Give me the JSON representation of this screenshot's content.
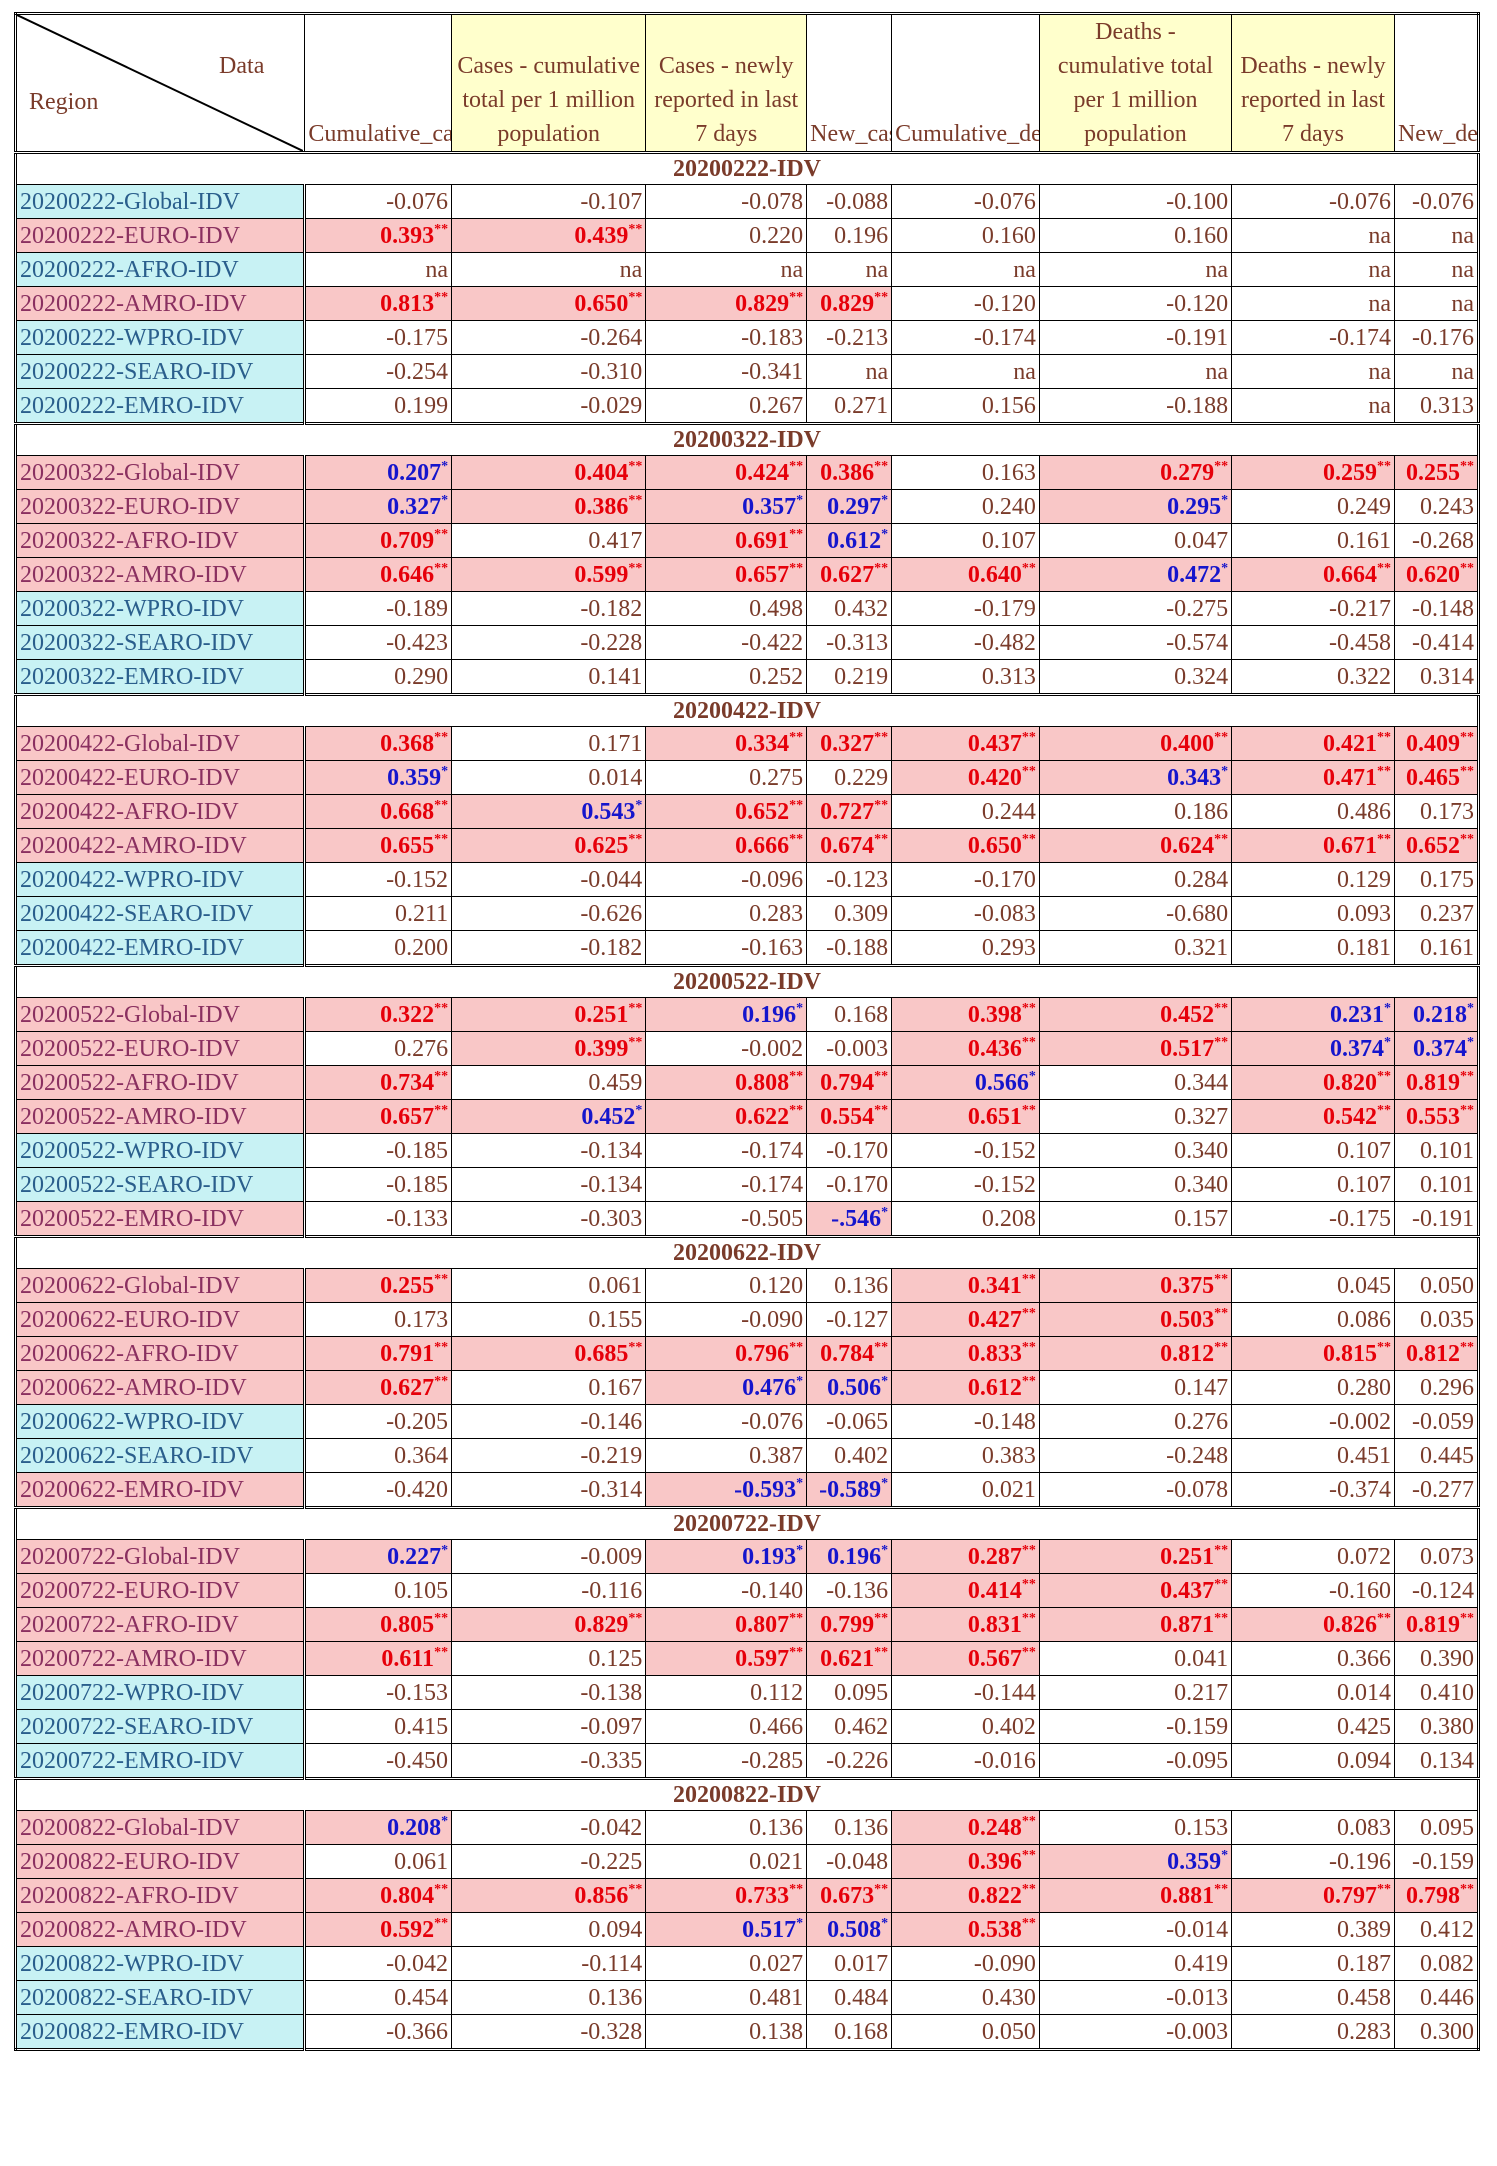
{
  "header": {
    "corner_top": "Data",
    "corner_bottom": "Region",
    "columns": [
      "Cumulative_cases",
      "Cases - cumulative total per 1 million population",
      "Cases - newly reported in last 7 days",
      "New_cases",
      "Cumulative_deaths",
      "Deaths - cumulative total per 1 million population",
      "Deaths - newly reported in last 7 days",
      "New_deaths"
    ]
  },
  "groups": [
    {
      "title": "20200222-IDV",
      "rows": [
        {
          "region": "20200222-Global-IDV",
          "cells": [
            "-0.076",
            "-0.107",
            "-0.078",
            "-0.088",
            "-0.076",
            "-0.100",
            "-0.076",
            "-0.076"
          ]
        },
        {
          "region": "20200222-EURO-IDV",
          "cells": [
            "0.393**",
            "0.439**",
            "0.220",
            "0.196",
            "0.160",
            "0.160",
            "na",
            "na"
          ]
        },
        {
          "region": "20200222-AFRO-IDV",
          "cells": [
            "na",
            "na",
            "na",
            "na",
            "na",
            "na",
            "na",
            "na"
          ]
        },
        {
          "region": "20200222-AMRO-IDV",
          "cells": [
            "0.813**",
            "0.650**",
            "0.829**",
            "0.829**",
            "-0.120",
            "-0.120",
            "na",
            "na"
          ]
        },
        {
          "region": "20200222-WPRO-IDV",
          "cells": [
            "-0.175",
            "-0.264",
            "-0.183",
            "-0.213",
            "-0.174",
            "-0.191",
            "-0.174",
            "-0.176"
          ]
        },
        {
          "region": "20200222-SEARO-IDV",
          "cells": [
            "-0.254",
            "-0.310",
            "-0.341",
            "na",
            "na",
            "na",
            "na",
            "na"
          ]
        },
        {
          "region": "20200222-EMRO-IDV",
          "cells": [
            "0.199",
            "-0.029",
            "0.267",
            "0.271",
            "0.156",
            "-0.188",
            "na",
            "0.313"
          ]
        }
      ]
    },
    {
      "title": "20200322-IDV",
      "rows": [
        {
          "region": "20200322-Global-IDV",
          "cells": [
            "0.207*",
            "0.404**",
            "0.424**",
            "0.386**",
            "0.163",
            "0.279**",
            "0.259**",
            "0.255**"
          ]
        },
        {
          "region": "20200322-EURO-IDV",
          "cells": [
            "0.327*",
            "0.386**",
            "0.357*",
            "0.297*",
            "0.240",
            "0.295*",
            "0.249",
            "0.243"
          ]
        },
        {
          "region": "20200322-AFRO-IDV",
          "cells": [
            "0.709**",
            "0.417",
            "0.691**",
            "0.612*",
            "0.107",
            "0.047",
            "0.161",
            "-0.268"
          ]
        },
        {
          "region": "20200322-AMRO-IDV",
          "cells": [
            "0.646**",
            "0.599**",
            "0.657**",
            "0.627**",
            "0.640**",
            "0.472*",
            "0.664**",
            "0.620**"
          ]
        },
        {
          "region": "20200322-WPRO-IDV",
          "cells": [
            "-0.189",
            "-0.182",
            "0.498",
            "0.432",
            "-0.179",
            "-0.275",
            "-0.217",
            "-0.148"
          ]
        },
        {
          "region": "20200322-SEARO-IDV",
          "cells": [
            "-0.423",
            "-0.228",
            "-0.422",
            "-0.313",
            "-0.482",
            "-0.574",
            "-0.458",
            "-0.414"
          ]
        },
        {
          "region": "20200322-EMRO-IDV",
          "cells": [
            "0.290",
            "0.141",
            "0.252",
            "0.219",
            "0.313",
            "0.324",
            "0.322",
            "0.314"
          ]
        }
      ]
    },
    {
      "title": "20200422-IDV",
      "rows": [
        {
          "region": "20200422-Global-IDV",
          "cells": [
            "0.368**",
            "0.171",
            "0.334**",
            "0.327**",
            "0.437**",
            "0.400**",
            "0.421**",
            "0.409**"
          ]
        },
        {
          "region": "20200422-EURO-IDV",
          "cells": [
            "0.359*",
            "0.014",
            "0.275",
            "0.229",
            "0.420**",
            "0.343*",
            "0.471**",
            "0.465**"
          ]
        },
        {
          "region": "20200422-AFRO-IDV",
          "cells": [
            "0.668**",
            "0.543*",
            "0.652**",
            "0.727**",
            "0.244",
            "0.186",
            "0.486",
            "0.173"
          ]
        },
        {
          "region": "20200422-AMRO-IDV",
          "cells": [
            "0.655**",
            "0.625**",
            "0.666**",
            "0.674**",
            "0.650**",
            "0.624**",
            "0.671**",
            "0.652**"
          ]
        },
        {
          "region": "20200422-WPRO-IDV",
          "cells": [
            "-0.152",
            "-0.044",
            "-0.096",
            "-0.123",
            "-0.170",
            "0.284",
            "0.129",
            "0.175"
          ]
        },
        {
          "region": "20200422-SEARO-IDV",
          "cells": [
            "0.211",
            "-0.626",
            "0.283",
            "0.309",
            "-0.083",
            "-0.680",
            "0.093",
            "0.237"
          ]
        },
        {
          "region": "20200422-EMRO-IDV",
          "cells": [
            "0.200",
            "-0.182",
            "-0.163",
            "-0.188",
            "0.293",
            "0.321",
            "0.181",
            "0.161"
          ]
        }
      ]
    },
    {
      "title": "20200522-IDV",
      "rows": [
        {
          "region": "20200522-Global-IDV",
          "cells": [
            "0.322**",
            "0.251**",
            "0.196*",
            "0.168",
            "0.398**",
            "0.452**",
            "0.231*",
            "0.218*"
          ]
        },
        {
          "region": "20200522-EURO-IDV",
          "cells": [
            "0.276",
            "0.399**",
            "-0.002",
            "-0.003",
            "0.436**",
            "0.517**",
            "0.374*",
            "0.374*"
          ]
        },
        {
          "region": "20200522-AFRO-IDV",
          "cells": [
            "0.734**",
            "0.459",
            "0.808**",
            "0.794**",
            "0.566*",
            "0.344",
            "0.820**",
            "0.819**"
          ]
        },
        {
          "region": "20200522-AMRO-IDV",
          "cells": [
            "0.657**",
            "0.452*",
            "0.622**",
            "0.554**",
            "0.651**",
            "0.327",
            "0.542**",
            "0.553**"
          ]
        },
        {
          "region": "20200522-WPRO-IDV",
          "cells": [
            "-0.185",
            "-0.134",
            "-0.174",
            "-0.170",
            "-0.152",
            "0.340",
            "0.107",
            "0.101"
          ]
        },
        {
          "region": "20200522-SEARO-IDV",
          "cells": [
            "-0.185",
            "-0.134",
            "-0.174",
            "-0.170",
            "-0.152",
            "0.340",
            "0.107",
            "0.101"
          ]
        },
        {
          "region": "20200522-EMRO-IDV",
          "cells": [
            "-0.133",
            "-0.303",
            "-0.505",
            "-.546*",
            "0.208",
            "0.157",
            "-0.175",
            "-0.191"
          ]
        }
      ]
    },
    {
      "title": "20200622-IDV",
      "rows": [
        {
          "region": "20200622-Global-IDV",
          "cells": [
            "0.255**",
            "0.061",
            "0.120",
            "0.136",
            "0.341**",
            "0.375**",
            "0.045",
            "0.050"
          ]
        },
        {
          "region": "20200622-EURO-IDV",
          "cells": [
            "0.173",
            "0.155",
            "-0.090",
            "-0.127",
            "0.427**",
            "0.503**",
            "0.086",
            "0.035"
          ]
        },
        {
          "region": "20200622-AFRO-IDV",
          "cells": [
            "0.791**",
            "0.685**",
            "0.796**",
            "0.784**",
            "0.833**",
            "0.812**",
            "0.815**",
            "0.812**"
          ]
        },
        {
          "region": "20200622-AMRO-IDV",
          "cells": [
            "0.627**",
            "0.167",
            "0.476*",
            "0.506*",
            "0.612**",
            "0.147",
            "0.280",
            "0.296"
          ]
        },
        {
          "region": "20200622-WPRO-IDV",
          "cells": [
            "-0.205",
            "-0.146",
            "-0.076",
            "-0.065",
            "-0.148",
            "0.276",
            "-0.002",
            "-0.059"
          ]
        },
        {
          "region": "20200622-SEARO-IDV",
          "cells": [
            "0.364",
            "-0.219",
            "0.387",
            "0.402",
            "0.383",
            "-0.248",
            "0.451",
            "0.445"
          ]
        },
        {
          "region": "20200622-EMRO-IDV",
          "cells": [
            "-0.420",
            "-0.314",
            "-0.593*",
            "-0.589*",
            "0.021",
            "-0.078",
            "-0.374",
            "-0.277"
          ]
        }
      ]
    },
    {
      "title": "20200722-IDV",
      "rows": [
        {
          "region": "20200722-Global-IDV",
          "cells": [
            "0.227*",
            "-0.009",
            "0.193*",
            "0.196*",
            "0.287**",
            "0.251**",
            "0.072",
            "0.073"
          ]
        },
        {
          "region": "20200722-EURO-IDV",
          "cells": [
            "0.105",
            "-0.116",
            "-0.140",
            "-0.136",
            "0.414**",
            "0.437**",
            "-0.160",
            "-0.124"
          ]
        },
        {
          "region": "20200722-AFRO-IDV",
          "cells": [
            "0.805**",
            "0.829**",
            "0.807**",
            "0.799**",
            "0.831**",
            "0.871**",
            "0.826**",
            "0.819**"
          ]
        },
        {
          "region": "20200722-AMRO-IDV",
          "cells": [
            "0.611**",
            "0.125",
            "0.597**",
            "0.621**",
            "0.567**",
            "0.041",
            "0.366",
            "0.390"
          ]
        },
        {
          "region": "20200722-WPRO-IDV",
          "cells": [
            "-0.153",
            "-0.138",
            "0.112",
            "0.095",
            "-0.144",
            "0.217",
            "0.014",
            "0.410"
          ]
        },
        {
          "region": "20200722-SEARO-IDV",
          "cells": [
            "0.415",
            "-0.097",
            "0.466",
            "0.462",
            "0.402",
            "-0.159",
            "0.425",
            "0.380"
          ]
        },
        {
          "region": "20200722-EMRO-IDV",
          "cells": [
            "-0.450",
            "-0.335",
            "-0.285",
            "-0.226",
            "-0.016",
            "-0.095",
            "0.094",
            "0.134"
          ]
        }
      ]
    },
    {
      "title": "20200822-IDV",
      "rows": [
        {
          "region": "20200822-Global-IDV",
          "cells": [
            "0.208*",
            "-0.042",
            "0.136",
            "0.136",
            "0.248**",
            "0.153",
            "0.083",
            "0.095"
          ]
        },
        {
          "region": "20200822-EURO-IDV",
          "cells": [
            "0.061",
            "-0.225",
            "0.021",
            "-0.048",
            "0.396**",
            "0.359*",
            "-0.196",
            "-0.159"
          ]
        },
        {
          "region": "20200822-AFRO-IDV",
          "cells": [
            "0.804**",
            "0.856**",
            "0.733**",
            "0.673**",
            "0.822**",
            "0.881**",
            "0.797**",
            "0.798**"
          ]
        },
        {
          "region": "20200822-AMRO-IDV",
          "cells": [
            "0.592**",
            "0.094",
            "0.517*",
            "0.508*",
            "0.538**",
            "-0.014",
            "0.389",
            "0.412"
          ]
        },
        {
          "region": "20200822-WPRO-IDV",
          "cells": [
            "-0.042",
            "-0.114",
            "0.027",
            "0.017",
            "-0.090",
            "0.419",
            "0.187",
            "0.082"
          ]
        },
        {
          "region": "20200822-SEARO-IDV",
          "cells": [
            "0.454",
            "0.136",
            "0.481",
            "0.484",
            "0.430",
            "-0.013",
            "0.458",
            "0.446"
          ]
        },
        {
          "region": "20200822-EMRO-IDV",
          "cells": [
            "-0.366",
            "-0.328",
            "0.138",
            "0.168",
            "0.050",
            "-0.003",
            "0.283",
            "0.300"
          ]
        }
      ]
    }
  ]
}
